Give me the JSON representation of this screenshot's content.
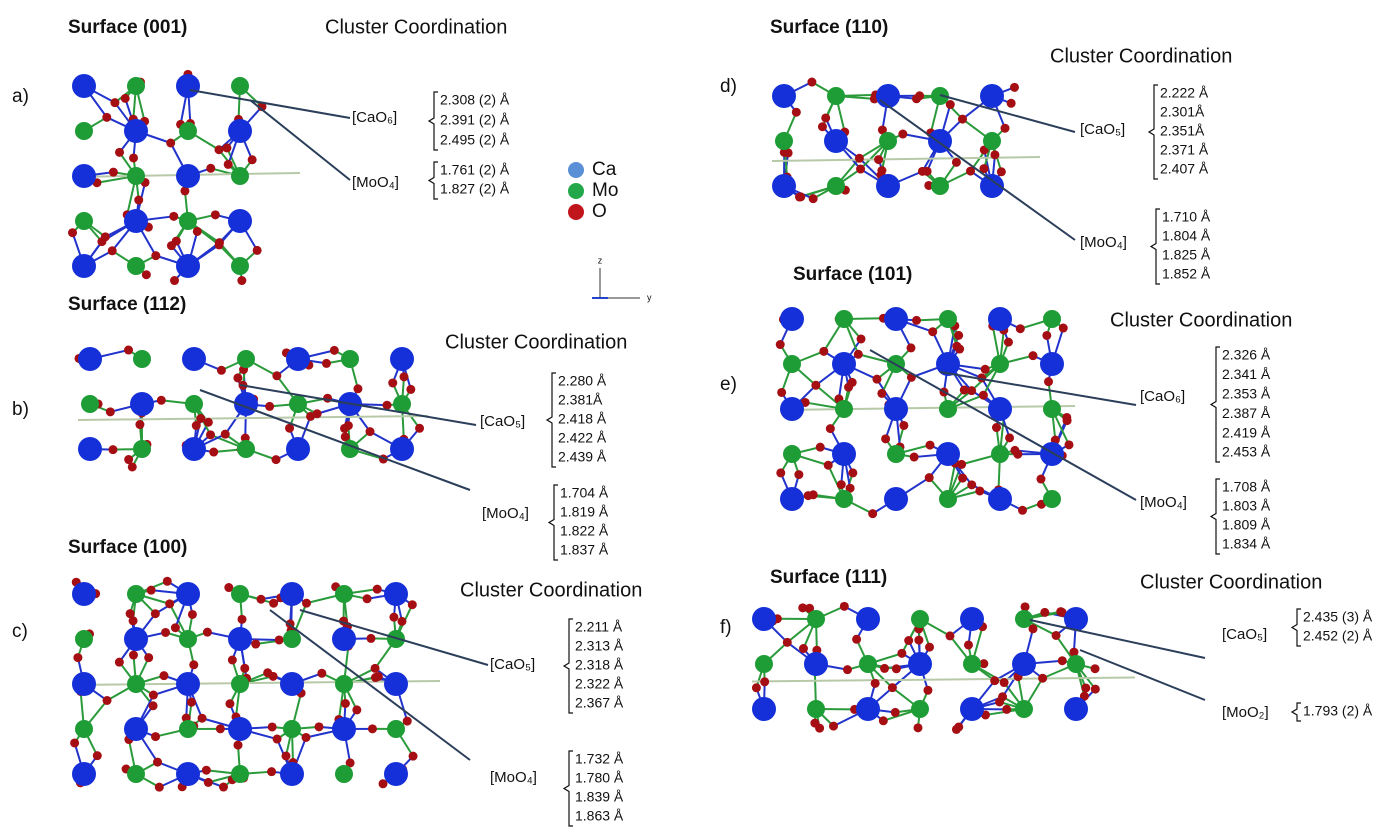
{
  "panels": [
    {
      "label": "a)",
      "title": "Surface (001)",
      "heading": "Cluster Coordination",
      "clusters": [
        {
          "name": "[CaO₆]",
          "bonds": [
            "2.308 (2) Å",
            "2.391 (2) Å",
            "2.495 (2) Å"
          ]
        },
        {
          "name": "[MoO₄]",
          "bonds": [
            "1.761 (2) Å",
            "1.827 (2) Å"
          ]
        }
      ]
    },
    {
      "label": "b)",
      "title": "Surface (112)",
      "heading": "Cluster Coordination",
      "clusters": [
        {
          "name": "[CaO₅]",
          "bonds": [
            "2.280 Å",
            "2.381Å",
            "2.418 Å",
            "2.422 Å",
            "2.439 Å"
          ]
        },
        {
          "name": "[MoO₄]",
          "bonds": [
            "1.704 Å",
            "1.819 Å",
            "1.822 Å",
            "1.837 Å"
          ]
        }
      ]
    },
    {
      "label": "c)",
      "title": "Surface (100)",
      "heading": "Cluster Coordination",
      "clusters": [
        {
          "name": "[CaO₅]",
          "bonds": [
            "2.211 Å",
            "2.313 Å",
            "2.318 Å",
            "2.322 Å",
            "2.367 Å"
          ]
        },
        {
          "name": "[MoO₄]",
          "bonds": [
            "1.732 Å",
            "1.780 Å",
            "1.839 Å",
            "1.863 Å"
          ]
        }
      ]
    },
    {
      "label": "d)",
      "title": "Surface (110)",
      "heading": "Cluster Coordination",
      "clusters": [
        {
          "name": "[CaO₅]",
          "bonds": [
            "2.222 Å",
            "2.301Å",
            "2.351Å",
            "2.371 Å",
            "2.407 Å"
          ]
        },
        {
          "name": "[MoO₄]",
          "bonds": [
            "1.710 Å",
            "1.804 Å",
            "1.825 Å",
            "1.852 Å"
          ]
        }
      ]
    },
    {
      "label": "e)",
      "title": "Surface (101)",
      "heading": "Cluster Coordination",
      "clusters": [
        {
          "name": "[CaO₆]",
          "bonds": [
            "2.326 Å",
            "2.341 Å",
            "2.353 Å",
            "2.387 Å",
            "2.419 Å",
            "2.453 Å"
          ]
        },
        {
          "name": "[MoO₄]",
          "bonds": [
            "1.708 Å",
            "1.803 Å",
            "1.809 Å",
            "1.834 Å"
          ]
        }
      ]
    },
    {
      "label": "f)",
      "title": "Surface (111)",
      "heading": "Cluster Coordination",
      "clusters": [
        {
          "name": "[CaO₅]",
          "bonds": [
            "2.435 (3) Å",
            "2.452 (2) Å"
          ]
        },
        {
          "name": "[MoO₂]",
          "bonds": [
            "1.793 (2) Å"
          ]
        }
      ]
    }
  ],
  "legend": [
    {
      "name": "Ca",
      "color": "#5b8fd6"
    },
    {
      "name": "Mo",
      "color": "#22a84a"
    },
    {
      "name": "O",
      "color": "#c0161b"
    }
  ],
  "axes": {
    "z": "z",
    "y": "y"
  }
}
